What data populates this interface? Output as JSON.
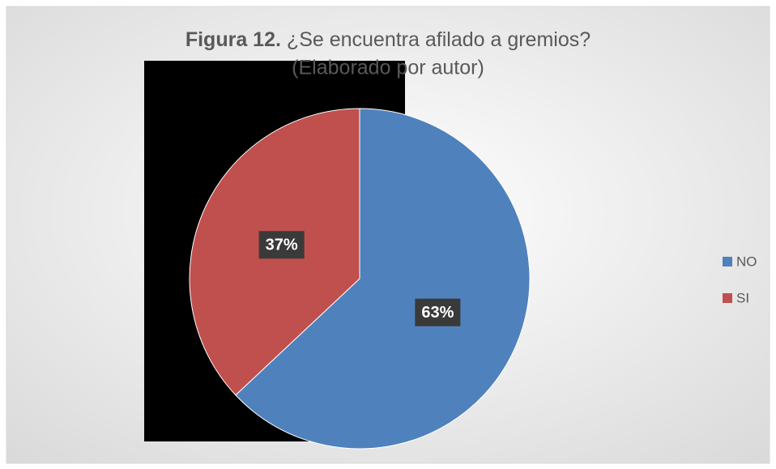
{
  "chart_data": {
    "type": "pie",
    "title_prefix": "Figura 12.",
    "title": "¿Se encuentra afilado a gremios?",
    "subtitle": "(Elaborado por autor)",
    "categories": [
      "NO",
      "SI"
    ],
    "values": [
      63,
      37
    ],
    "value_labels": [
      "63%",
      "37%"
    ],
    "colors": [
      "#4f81bd",
      "#c0504d"
    ],
    "legend": "right"
  }
}
